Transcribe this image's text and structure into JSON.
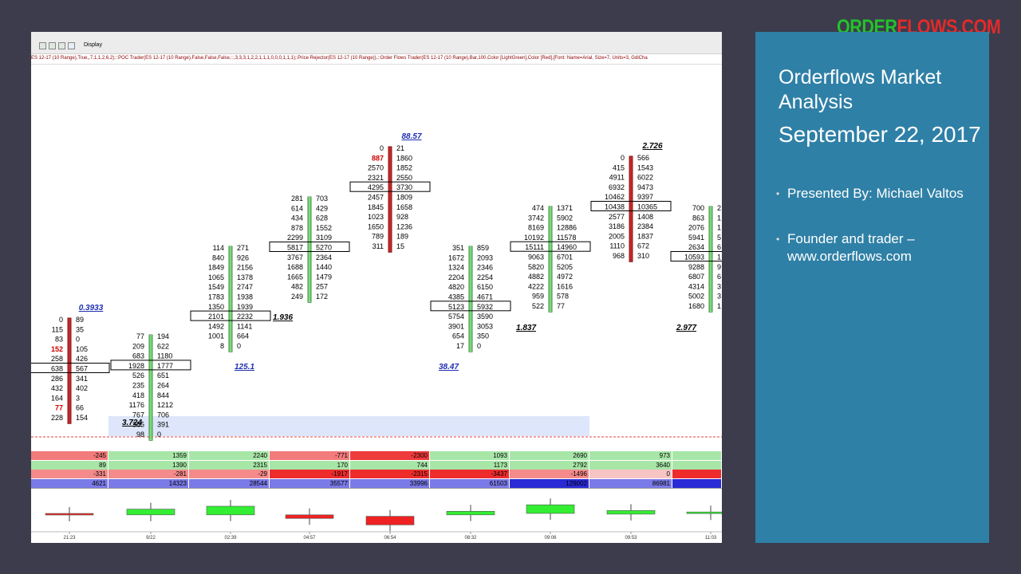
{
  "toolbar": {
    "display_label": "Display",
    "formula": "ES 12-17 (10 Range),True,,7,1,1,2,6,2);::POC Trader(ES 12-17 (10 Range),False,False,False,::,3,3,3,1,2,2,1,1,1,0,0,0,1,1,1);:Price Rejector(ES 12-17 (10 Range)),::Order Flows Trader(ES 12-17 (10 Range),Bar,100,Color [LightGreen],Color [Red],[Font: Name=Arial, Size=7, Units=3, GdiCha"
  },
  "colors": {
    "background": "#3c3c4c",
    "panel": "#2f80a6",
    "bull": "#7fd77f",
    "bear": "#c62828",
    "ratio_label": "#1f2fb0",
    "logo_green": "#22c32a",
    "logo_red": "#e32a2a"
  },
  "logo": {
    "part1": "ORDER",
    "part2": "FLOWS.COM"
  },
  "slide": {
    "title": "Orderflows Market Analysis",
    "date": "September 22, 2017",
    "bullets": [
      "Presented By: Michael Valtos",
      "Founder and trader – www.orderflows.com"
    ]
  },
  "chart_data": {
    "type": "table",
    "price_rows_top_down": true,
    "bars": [
      {
        "rows": [
          [
            "0",
            "89"
          ],
          [
            "115",
            "35"
          ],
          [
            "83",
            "0"
          ],
          [
            "152",
            "105"
          ],
          [
            "258",
            "426"
          ],
          [
            "638",
            "567"
          ],
          [
            "286",
            "341"
          ],
          [
            "432",
            "402"
          ],
          [
            "164",
            "3"
          ],
          [
            "77",
            "66"
          ],
          [
            "228",
            "154"
          ]
        ],
        "dir": "down",
        "poc_index": 5,
        "top_label": "0.3933",
        "bottom_label": "",
        "red_bids": [
          3,
          9
        ]
      },
      {
        "rows": [
          [
            "77",
            "194"
          ],
          [
            "209",
            "622"
          ],
          [
            "683",
            "1180"
          ],
          [
            "1928",
            "1777"
          ],
          [
            "526",
            "651"
          ],
          [
            "235",
            "264"
          ],
          [
            "418",
            "844"
          ],
          [
            "1176",
            "1212"
          ],
          [
            "767",
            "706"
          ],
          [
            "365",
            "391"
          ],
          [
            "98",
            "0"
          ]
        ],
        "dir": "up",
        "poc_index": 3,
        "top_label": "",
        "bottom_label": "3.724",
        "red_bids": []
      },
      {
        "rows": [
          [
            "114",
            "271"
          ],
          [
            "840",
            "926"
          ],
          [
            "1849",
            "2156"
          ],
          [
            "1065",
            "1378"
          ],
          [
            "1549",
            "2747"
          ],
          [
            "1783",
            "1938"
          ],
          [
            "1350",
            "1939"
          ],
          [
            "2101",
            "2232"
          ],
          [
            "1492",
            "1141"
          ],
          [
            "1001",
            "664"
          ],
          [
            "8",
            "0"
          ]
        ],
        "dir": "up",
        "poc_index": 7,
        "top_label": "",
        "bottom_label": "125.1",
        "side_label": "1.936",
        "red_bids": []
      },
      {
        "rows": [
          [
            "281",
            "703"
          ],
          [
            "614",
            "429"
          ],
          [
            "434",
            "628"
          ],
          [
            "878",
            "1552"
          ],
          [
            "2299",
            "3109"
          ],
          [
            "5817",
            "5270"
          ],
          [
            "3767",
            "2364"
          ],
          [
            "1688",
            "1440"
          ],
          [
            "1665",
            "1479"
          ],
          [
            "482",
            "257"
          ],
          [
            "249",
            "172"
          ]
        ],
        "dir": "up",
        "poc_index": 5,
        "top_label": "",
        "bottom_label": "",
        "red_bids": []
      },
      {
        "rows": [
          [
            "0",
            "21"
          ],
          [
            "887",
            "1860"
          ],
          [
            "2570",
            "1852"
          ],
          [
            "2321",
            "2550"
          ],
          [
            "4295",
            "3730"
          ],
          [
            "2457",
            "1809"
          ],
          [
            "1845",
            "1658"
          ],
          [
            "1023",
            "928"
          ],
          [
            "1650",
            "1236"
          ],
          [
            "789",
            "189"
          ],
          [
            "311",
            "15"
          ]
        ],
        "dir": "down",
        "poc_index": 4,
        "top_label": "88.57",
        "bottom_label": "",
        "red_bids": [
          1
        ]
      },
      {
        "rows": [
          [
            "351",
            "859"
          ],
          [
            "1672",
            "2093"
          ],
          [
            "1324",
            "2346"
          ],
          [
            "2204",
            "2254"
          ],
          [
            "4820",
            "6150"
          ],
          [
            "4385",
            "4671"
          ],
          [
            "5123",
            "5932"
          ],
          [
            "5754",
            "3590"
          ],
          [
            "3901",
            "3053"
          ],
          [
            "654",
            "350"
          ],
          [
            "17",
            "0"
          ]
        ],
        "dir": "up",
        "poc_index": 6,
        "top_label": "",
        "bottom_label": "38.47",
        "red_bids": []
      },
      {
        "rows": [
          [
            "474",
            "1371"
          ],
          [
            "3742",
            "5902"
          ],
          [
            "8169",
            "12886"
          ],
          [
            "10192",
            "11578"
          ],
          [
            "15111",
            "14960"
          ],
          [
            "9063",
            "6701"
          ],
          [
            "5820",
            "5205"
          ],
          [
            "4882",
            "4972"
          ],
          [
            "4222",
            "1616"
          ],
          [
            "959",
            "578"
          ],
          [
            "522",
            "77"
          ]
        ],
        "dir": "up",
        "poc_index": 4,
        "top_label": "",
        "bottom_label": "1.837",
        "red_bids": []
      },
      {
        "rows": [
          [
            "0",
            "566"
          ],
          [
            "415",
            "1543"
          ],
          [
            "4911",
            "6022"
          ],
          [
            "6932",
            "9473"
          ],
          [
            "10462",
            "9397"
          ],
          [
            "10438",
            "10365"
          ],
          [
            "2577",
            "1408"
          ],
          [
            "3186",
            "2384"
          ],
          [
            "2005",
            "1837"
          ],
          [
            "1110",
            "672"
          ],
          [
            "968",
            "310"
          ]
        ],
        "dir": "down",
        "poc_index": 5,
        "top_label": "2.726",
        "bottom_label": "",
        "red_bids": []
      },
      {
        "rows": [
          [
            "700",
            "2"
          ],
          [
            "863",
            "1"
          ],
          [
            "2076",
            "1"
          ],
          [
            "5941",
            "5"
          ],
          [
            "2634",
            "6"
          ],
          [
            "10593",
            "1"
          ],
          [
            "9288",
            "9"
          ],
          [
            "6807",
            "6"
          ],
          [
            "4314",
            "3"
          ],
          [
            "5002",
            "3"
          ],
          [
            "1680",
            "1"
          ]
        ],
        "dir": "up",
        "poc_index": 5,
        "top_label": "",
        "bottom_label": "2.977",
        "red_bids": []
      }
    ],
    "stat_rows": [
      [
        "-245",
        "1359",
        "2240",
        "-771",
        "-2300",
        "1093",
        "2690",
        "973",
        ""
      ],
      [
        "89",
        "1390",
        "2315",
        "170",
        "744",
        "1173",
        "2792",
        "3640",
        ""
      ],
      [
        "-331",
        "-281",
        "-29",
        "-1917",
        "-2315",
        "-3437",
        "-1496",
        "0",
        ""
      ],
      [
        "4621",
        "14323",
        "28544",
        "35577",
        "33996",
        "61503",
        "129002",
        "86981",
        ""
      ]
    ],
    "time_labels": [
      "21:23",
      "9/22",
      "02:39",
      "04:57",
      "06:54",
      "08:32",
      "09:06",
      "09:53",
      "11:03"
    ],
    "mini_candles": [
      {
        "open": 0.5,
        "close": 0.5,
        "dir": "down"
      },
      {
        "open": 0.4,
        "close": 0.8,
        "dir": "up"
      },
      {
        "open": 0.4,
        "close": 1.0,
        "dir": "up"
      },
      {
        "open": 0.4,
        "close": 0.15,
        "dir": "down"
      },
      {
        "open": 0.3,
        "close": -0.3,
        "dir": "down"
      },
      {
        "open": 0.4,
        "close": 0.65,
        "dir": "up"
      },
      {
        "open": 0.5,
        "close": 1.1,
        "dir": "up"
      },
      {
        "open": 0.45,
        "close": 0.7,
        "dir": "up"
      },
      {
        "open": 0.6,
        "close": 0.55,
        "dir": "up"
      }
    ]
  }
}
